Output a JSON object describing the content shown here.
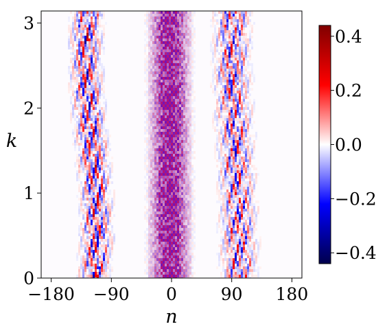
{
  "chart_data": {
    "type": "heatmap",
    "title": "",
    "xlabel": "n",
    "ylabel": "k",
    "xlim": [
      -195,
      195
    ],
    "ylim": [
      0,
      3.1416
    ],
    "x_ticks": [
      -180,
      -90,
      0,
      90,
      180
    ],
    "x_tick_labels": [
      "−180",
      "−90",
      "0",
      "90",
      "180"
    ],
    "y_ticks": [
      0,
      1,
      2,
      3
    ],
    "y_tick_labels": [
      "0",
      "1",
      "2",
      "3"
    ],
    "colormap": "seismic",
    "colorbar": {
      "range": [
        -0.44,
        0.44
      ],
      "ticks": [
        0.4,
        0.2,
        0.0,
        -0.2,
        -0.4
      ],
      "tick_labels": [
        "0.4",
        "0.2",
        "0.0",
        "−0.2",
        "−0.4"
      ]
    },
    "bands": [
      {
        "center": -120,
        "half_width": 22,
        "amplitude": 0.35,
        "pattern": "mixed red/blue oscillations, drifting with k"
      },
      {
        "center": -3,
        "half_width": 30,
        "amplitude": 0.12,
        "pattern": "dense purple checkerboard"
      },
      {
        "center": 95,
        "half_width": 25,
        "amplitude": 0.3,
        "pattern": "mixed red/blue oscillations"
      }
    ],
    "grid": false
  },
  "colors": {
    "neg_max": "#00004c",
    "neg": "#0000ff",
    "zero": "#ffffff",
    "pos": "#ff0000",
    "pos_max": "#800000"
  }
}
